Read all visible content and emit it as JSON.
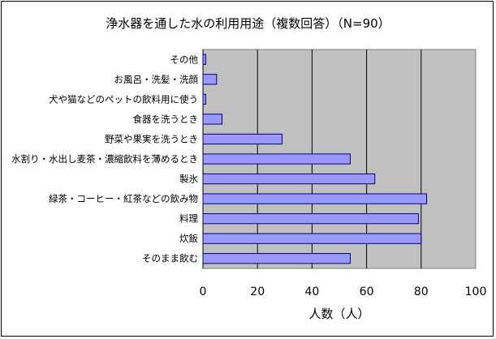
{
  "chart_data": {
    "type": "bar",
    "orientation": "horizontal",
    "title": "浄水器を通した水の利用用途（複数回答）（N=90）",
    "xlabel": "人数（人）",
    "xlim": [
      0,
      100
    ],
    "xticks": [
      0,
      20,
      40,
      60,
      80,
      100
    ],
    "grid": true,
    "categories": [
      "その他",
      "お風呂・洗髪・洗顔",
      "犬や猫などのペットの飲料用に使う",
      "食器を洗うとき",
      "野菜や果実を洗うとき",
      "水割り・水出し麦茶・濃縮飲料を薄めるとき",
      "製氷",
      "緑茶・コーヒー・紅茶などの飲み物",
      "料理",
      "炊飯",
      "そのまま飲む"
    ],
    "values": [
      1,
      5,
      1,
      7,
      29,
      54,
      63,
      82,
      79,
      80,
      54
    ],
    "colors": {
      "bar": "#9999ff",
      "bar_stroke": "#000080",
      "plot_bg": "#c0c0c0",
      "grid": "#000000"
    }
  }
}
